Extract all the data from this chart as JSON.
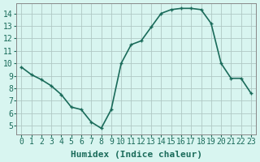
{
  "x": [
    0,
    1,
    2,
    3,
    4,
    5,
    6,
    7,
    8,
    9,
    10,
    11,
    12,
    13,
    14,
    15,
    16,
    17,
    18,
    19,
    20,
    21,
    22,
    23
  ],
  "y": [
    9.7,
    9.1,
    8.7,
    8.2,
    7.5,
    6.5,
    6.3,
    5.3,
    4.8,
    6.3,
    10.0,
    11.5,
    11.8,
    12.9,
    14.0,
    14.3,
    14.4,
    14.4,
    14.3,
    13.2,
    10.0,
    8.8,
    8.8,
    7.6
  ],
  "line_color": "#1a6b5a",
  "marker": "P",
  "markersize": 3,
  "linewidth": 1.2,
  "bg_color": "#d8f5f0",
  "grid_color": "#b0c8c4",
  "xlabel": "Humidex (Indice chaleur)",
  "xlabel_fontsize": 8,
  "xlim": [
    -0.5,
    23.5
  ],
  "ylim": [
    4.3,
    14.8
  ],
  "yticks": [
    5,
    6,
    7,
    8,
    9,
    10,
    11,
    12,
    13,
    14
  ],
  "xticks": [
    0,
    1,
    2,
    3,
    4,
    5,
    6,
    7,
    8,
    9,
    10,
    11,
    12,
    13,
    14,
    15,
    16,
    17,
    18,
    19,
    20,
    21,
    22,
    23
  ],
  "tick_fontsize": 7
}
